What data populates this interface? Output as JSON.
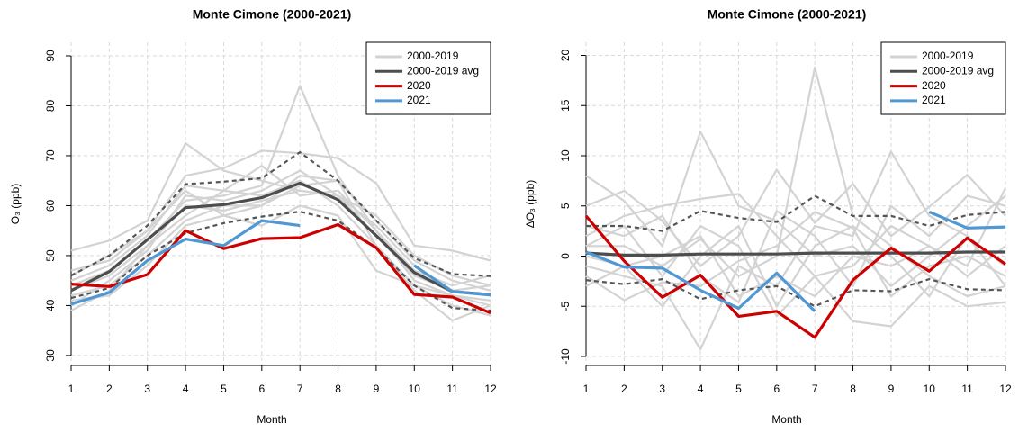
{
  "chart_data": [
    {
      "type": "line",
      "title": "Monte Cimone (2000-2021)",
      "x_label": "Month",
      "y_label": "O₃ (ppb)",
      "x": [
        1,
        2,
        3,
        4,
        5,
        6,
        7,
        8,
        9,
        10,
        11,
        12
      ],
      "xlim": [
        1,
        12
      ],
      "xticks": [
        1,
        2,
        3,
        4,
        5,
        6,
        7,
        8,
        9,
        10,
        11,
        12
      ],
      "ylim": [
        28,
        92.7
      ],
      "yticks": [
        30,
        40,
        50,
        60,
        70,
        80,
        90
      ],
      "grid": true,
      "legend": "top-right",
      "series": [
        {
          "name": "2000-2019",
          "color": "#d3d3d3",
          "values": [
            [
              51,
              53,
              57,
              72.5,
              67,
              65,
              63,
              62,
              58,
              50,
              46,
              44
            ],
            [
              46,
              50,
              55,
              66,
              67.5,
              71,
              70.5,
              69.5,
              64.5,
              52,
              51,
              49
            ],
            [
              44,
              47,
              53,
              61,
              62,
              64,
              84,
              66,
              55,
              45,
              42,
              40
            ],
            [
              42,
              44,
              50,
              57,
              60,
              60,
              66,
              65,
              52,
              43,
              37,
              40
            ],
            [
              40,
              45,
              51,
              62,
              61,
              63,
              67,
              62,
              56,
              48,
              43,
              42
            ],
            [
              45,
              48,
              54,
              64,
              63,
              68,
              62,
              63,
              55,
              47,
              44,
              46
            ],
            [
              41,
              42,
              48,
              56,
              58,
              56,
              60,
              58,
              47,
              44,
              40,
              38
            ],
            [
              43,
              46,
              52,
              60,
              59,
              61,
              63,
              62,
              54,
              46,
              43,
              44
            ],
            [
              39,
              43,
              52,
              58,
              63,
              62,
              65,
              60,
              52,
              44,
              42,
              41
            ],
            [
              47,
              49,
              55,
              63,
              58,
              60,
              64,
              65,
              57,
              49,
              45,
              43
            ]
          ]
        },
        {
          "name": "2000-2019 avg",
          "color": "#4d4d4d",
          "values": [
            43,
            46.8,
            53.2,
            59.6,
            60.2,
            61.6,
            64.5,
            61.2,
            54,
            46.6,
            42.8,
            42.2
          ]
        },
        {
          "name": "2020",
          "color": "#cc0000",
          "values": [
            44.3,
            43.8,
            46.2,
            55,
            51.4,
            53.4,
            53.6,
            56.2,
            51.6,
            42.2,
            41.7,
            38.5
          ]
        },
        {
          "name": "2021",
          "color": "#4f98d4",
          "values": [
            40.3,
            42.6,
            49,
            53.3,
            52,
            57,
            56,
            null,
            null,
            48,
            42.8,
            42.1
          ]
        }
      ],
      "dashed_series": [
        {
          "color": "#555555",
          "values": [
            46,
            50,
            56,
            64.3,
            64.8,
            65.5,
            70.7,
            65,
            57,
            49.5,
            46.3,
            45.9
          ]
        },
        {
          "color": "#555555",
          "values": [
            41.5,
            43.5,
            50,
            54.5,
            56.5,
            57.8,
            58.8,
            57,
            51.5,
            44,
            39.5,
            39
          ]
        }
      ]
    },
    {
      "type": "line",
      "title": "Monte Cimone (2000-2021)",
      "x_label": "Month",
      "y_label": "ΔO₃ (ppb)",
      "x": [
        1,
        2,
        3,
        4,
        5,
        6,
        7,
        8,
        9,
        10,
        11,
        12
      ],
      "xlim": [
        1,
        12
      ],
      "xticks": [
        1,
        2,
        3,
        4,
        5,
        6,
        7,
        8,
        9,
        10,
        11,
        12
      ],
      "ylim": [
        -10.9,
        21.3
      ],
      "yticks": [
        -10,
        -5,
        0,
        5,
        10,
        15,
        20
      ],
      "grid": true,
      "legend": "top-right",
      "series": [
        {
          "name": "2000-2019",
          "color": "#d3d3d3",
          "values": [
            [
              8,
              5.5,
              1,
              12.4,
              5,
              3.5,
              0,
              1,
              -3,
              0,
              3,
              6
            ],
            [
              5,
              6.5,
              3.5,
              -1,
              2,
              8.6,
              3.3,
              7.2,
              2,
              4.9,
              8.1,
              4
            ],
            [
              1,
              1,
              -1,
              1.7,
              -2,
              0,
              18.8,
              4,
              1,
              -2,
              -4,
              -3
            ],
            [
              -1,
              -2,
              -3,
              -9.3,
              -1,
              -3,
              3,
              2,
              10.4,
              4,
              2,
              -1
            ],
            [
              2,
              4,
              5,
              5.7,
              6.2,
              2,
              -2,
              -6.5,
              -7,
              -3,
              -5,
              -4.6
            ],
            [
              -3,
              -1,
              0,
              2,
              -4,
              -2,
              -4,
              0,
              -1,
              1,
              -2,
              1
            ],
            [
              -2,
              -4.4,
              -2.6,
              -3,
              -0.5,
              1,
              4.4,
              2.8,
              -4,
              -1,
              0,
              -2
            ],
            [
              3,
              2,
              4,
              -2,
              -4.6,
              4.5,
              2,
              -3,
              5,
              2,
              6,
              5
            ],
            [
              0,
              -1,
              -5,
              0,
              3,
              -5,
              1,
              3,
              0,
              -4,
              2,
              -3
            ],
            [
              1,
              3,
              -2,
              3,
              1,
              -6,
              -2,
              -1,
              3,
              1,
              -1,
              6.8
            ]
          ]
        },
        {
          "name": "2000-2019 avg",
          "color": "#4d4d4d",
          "values": [
            0.3,
            0.1,
            0.1,
            0.2,
            0.2,
            0.2,
            0.3,
            0.3,
            0.3,
            0.3,
            0.4,
            0.4
          ]
        },
        {
          "name": "2020",
          "color": "#cc0000",
          "values": [
            4,
            -0.5,
            -4.1,
            -1.9,
            -6,
            -5.5,
            -8.1,
            -2.4,
            0.8,
            -1.5,
            1.8,
            -0.8
          ]
        },
        {
          "name": "2021",
          "color": "#4f98d4",
          "values": [
            0.4,
            -1.1,
            -1.2,
            -3.4,
            -5.2,
            -1.7,
            -5.5,
            null,
            null,
            4.4,
            2.8,
            2.9
          ]
        }
      ],
      "dashed_series": [
        {
          "color": "#555555",
          "values": [
            3,
            3,
            2.5,
            4.5,
            3.8,
            3.4,
            6,
            4,
            4,
            3,
            4.1,
            4.4
          ]
        },
        {
          "color": "#555555",
          "values": [
            -2.4,
            -2.8,
            -2.3,
            -4.3,
            -3.4,
            -3,
            -5,
            -3.4,
            -3.5,
            -2.3,
            -3.3,
            -3.4
          ]
        }
      ]
    }
  ]
}
